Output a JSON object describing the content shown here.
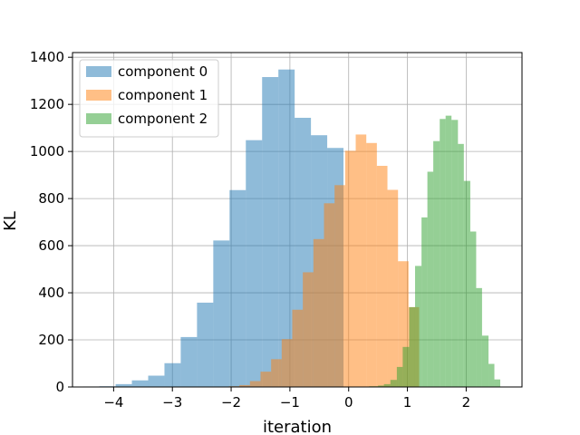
{
  "chart_data": {
    "type": "bar",
    "subtype": "overlapping-histogram",
    "xlabel": "iteration",
    "ylabel": "KL",
    "xlim": [
      -4.7,
      2.95
    ],
    "ylim": [
      0,
      1420
    ],
    "xticks": [
      -4,
      -3,
      -2,
      -1,
      0,
      1,
      2
    ],
    "xtick_labels": [
      "−4",
      "−3",
      "−2",
      "−1",
      "0",
      "1",
      "2"
    ],
    "yticks": [
      0,
      200,
      400,
      600,
      800,
      1000,
      1200,
      1400
    ],
    "grid": true,
    "legend_position": "top-left",
    "bar_opacity": 0.5,
    "series": [
      {
        "name": "component 0",
        "color": "#1f77b4",
        "bin_edges": [
          -4.52,
          -4.243,
          -3.966,
          -3.689,
          -3.412,
          -3.135,
          -2.858,
          -2.581,
          -2.304,
          -2.027,
          -1.75,
          -1.473,
          -1.196,
          -0.919,
          -0.642,
          -0.365,
          -0.088,
          0.189
        ],
        "counts": [
          2,
          3,
          12,
          28,
          48,
          101,
          212,
          358,
          622,
          836,
          1048,
          1316,
          1348,
          1143,
          1069,
          1015,
          0
        ]
      },
      {
        "name": "component 1",
        "color": "#ff7f0e",
        "bin_edges": [
          -2.04,
          -1.86,
          -1.68,
          -1.5,
          -1.32,
          -1.14,
          -0.96,
          -0.78,
          -0.6,
          -0.42,
          -0.24,
          -0.06,
          0.12,
          0.3,
          0.48,
          0.66,
          0.84,
          1.02,
          1.2
        ],
        "counts": [
          3,
          8,
          25,
          65,
          118,
          203,
          328,
          487,
          628,
          780,
          857,
          1003,
          1072,
          1036,
          939,
          837,
          534,
          339
        ]
      },
      {
        "name": "component 2",
        "color": "#2ca02c",
        "bin_edges": [
          0.35,
          0.5,
          0.6,
          0.71,
          0.82,
          0.92,
          1.03,
          1.13,
          1.24,
          1.34,
          1.44,
          1.55,
          1.65,
          1.75,
          1.86,
          1.96,
          2.07,
          2.17,
          2.27,
          2.38,
          2.48,
          2.58
        ],
        "counts": [
          3,
          6,
          12,
          30,
          85,
          170,
          339,
          514,
          720,
          914,
          1044,
          1138,
          1152,
          1134,
          1032,
          875,
          660,
          420,
          218,
          98,
          32
        ]
      }
    ]
  }
}
